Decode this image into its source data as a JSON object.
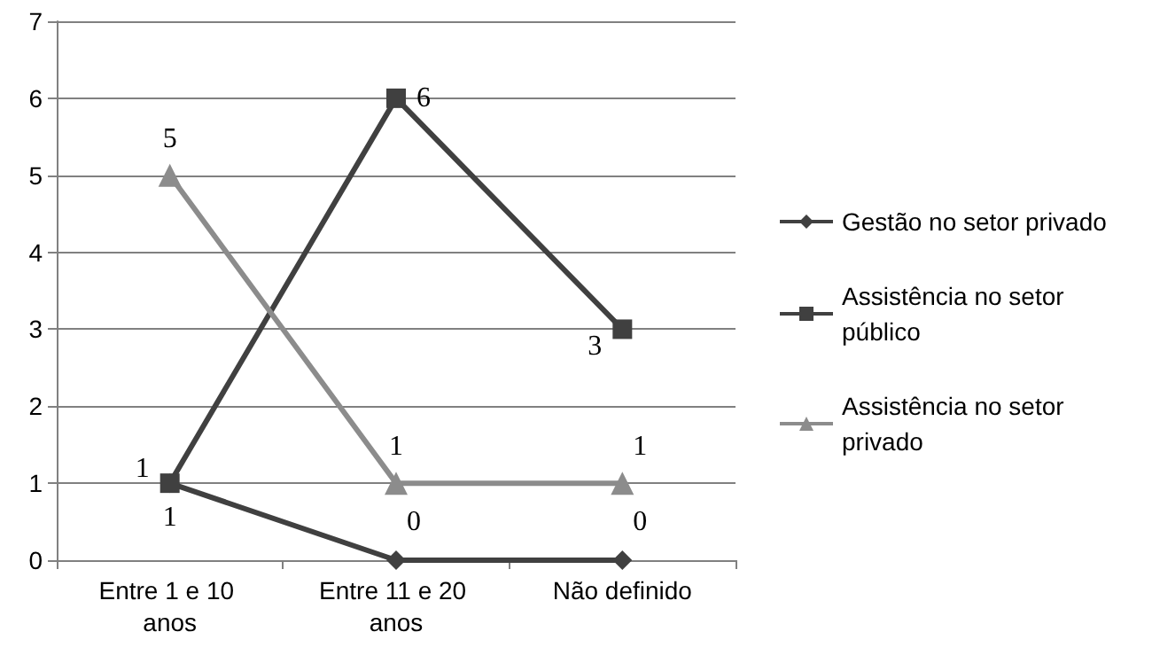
{
  "chart_data": {
    "type": "line",
    "categories": [
      "Entre 1 e 10 anos",
      "Entre 11 e 20 anos",
      "Não definido"
    ],
    "series": [
      {
        "name": "Gestão no setor privado",
        "color": "#404040",
        "marker": "diamond",
        "values": [
          1,
          0,
          0
        ]
      },
      {
        "name": "Assistência no setor público",
        "color": "#404040",
        "marker": "square",
        "values": [
          1,
          6,
          3
        ]
      },
      {
        "name": "Assistência no setor privado",
        "color": "#8c8c8c",
        "marker": "triangle",
        "values": [
          5,
          1,
          1
        ]
      }
    ],
    "ylim": [
      0,
      7
    ],
    "yticks": [
      0,
      1,
      2,
      3,
      4,
      5,
      6,
      7
    ],
    "grid": "y",
    "legend": "right",
    "data_labels": true
  }
}
